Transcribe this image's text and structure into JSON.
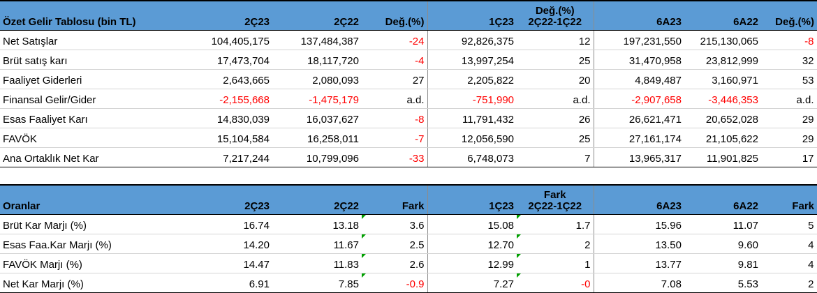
{
  "income": {
    "headers": [
      "Özet Gelir Tablosu (bin TL)",
      "2Ç23",
      "2Ç22",
      "Değ.(%)",
      "1Ç23",
      "Değ.(%)\n2Ç22-1Ç22",
      "6A23",
      "6A22",
      "Değ.(%)"
    ],
    "rows": [
      {
        "label": "Net Satışlar",
        "c": [
          "104,405,175",
          "137,484,387",
          "-24",
          "92,826,375",
          "12",
          "197,231,550",
          "215,130,065",
          "-8"
        ]
      },
      {
        "label": "Brüt satış karı",
        "c": [
          "17,473,704",
          "18,117,720",
          "-4",
          "13,997,254",
          "25",
          "31,470,958",
          "23,812,999",
          "32"
        ]
      },
      {
        "label": "Faaliyet Giderleri",
        "c": [
          "2,643,665",
          "2,080,093",
          "27",
          "2,205,822",
          "20",
          "4,849,487",
          "3,160,971",
          "53"
        ]
      },
      {
        "label": "Finansal Gelir/Gider",
        "c": [
          "-2,155,668",
          "-1,475,179",
          "a.d.",
          "-751,990",
          "a.d.",
          "-2,907,658",
          "-3,446,353",
          "a.d."
        ]
      },
      {
        "label": "Esas Faaliyet Karı",
        "c": [
          "14,830,039",
          "16,037,627",
          "-8",
          "11,791,432",
          "26",
          "26,621,471",
          "20,652,028",
          "29"
        ]
      },
      {
        "label": "FAVÖK",
        "c": [
          "15,104,584",
          "16,258,011",
          "-7",
          "12,056,590",
          "25",
          "27,161,174",
          "21,105,622",
          "29"
        ]
      },
      {
        "label": "Ana Ortaklık Net Kar",
        "c": [
          "7,217,244",
          "10,799,096",
          "-33",
          "6,748,073",
          "7",
          "13,965,317",
          "11,901,825",
          "17"
        ]
      }
    ]
  },
  "ratios": {
    "headers": [
      "Oranlar",
      "2Ç23",
      "2Ç22",
      "Fark",
      "1Ç23",
      "Fark\n2Ç22-1Ç22",
      "6A23",
      "6A22",
      "Fark"
    ],
    "rows": [
      {
        "label": "Brüt Kar Marjı (%)",
        "c": [
          "16.74",
          "13.18",
          "3.6",
          "15.08",
          "1.7",
          "15.96",
          "11.07",
          "5"
        ]
      },
      {
        "label": "Esas Faa.Kar Marjı (%)",
        "c": [
          "14.20",
          "11.67",
          "2.5",
          "12.70",
          "2",
          "13.50",
          "9.60",
          "4"
        ]
      },
      {
        "label": "FAVÖK Marjı (%)",
        "c": [
          "14.47",
          "11.83",
          "2.6",
          "12.99",
          "1",
          "13.77",
          "9.81",
          "4"
        ]
      },
      {
        "label": "Net Kar Marjı (%)",
        "c": [
          "6.91",
          "7.85",
          "-0.9",
          "7.27",
          "-0",
          "7.08",
          "5.53",
          "2"
        ]
      }
    ]
  },
  "colors": {
    "header_bg": "#5b9bd5",
    "negative": "#ff0000",
    "error_marker": "#00a000"
  }
}
